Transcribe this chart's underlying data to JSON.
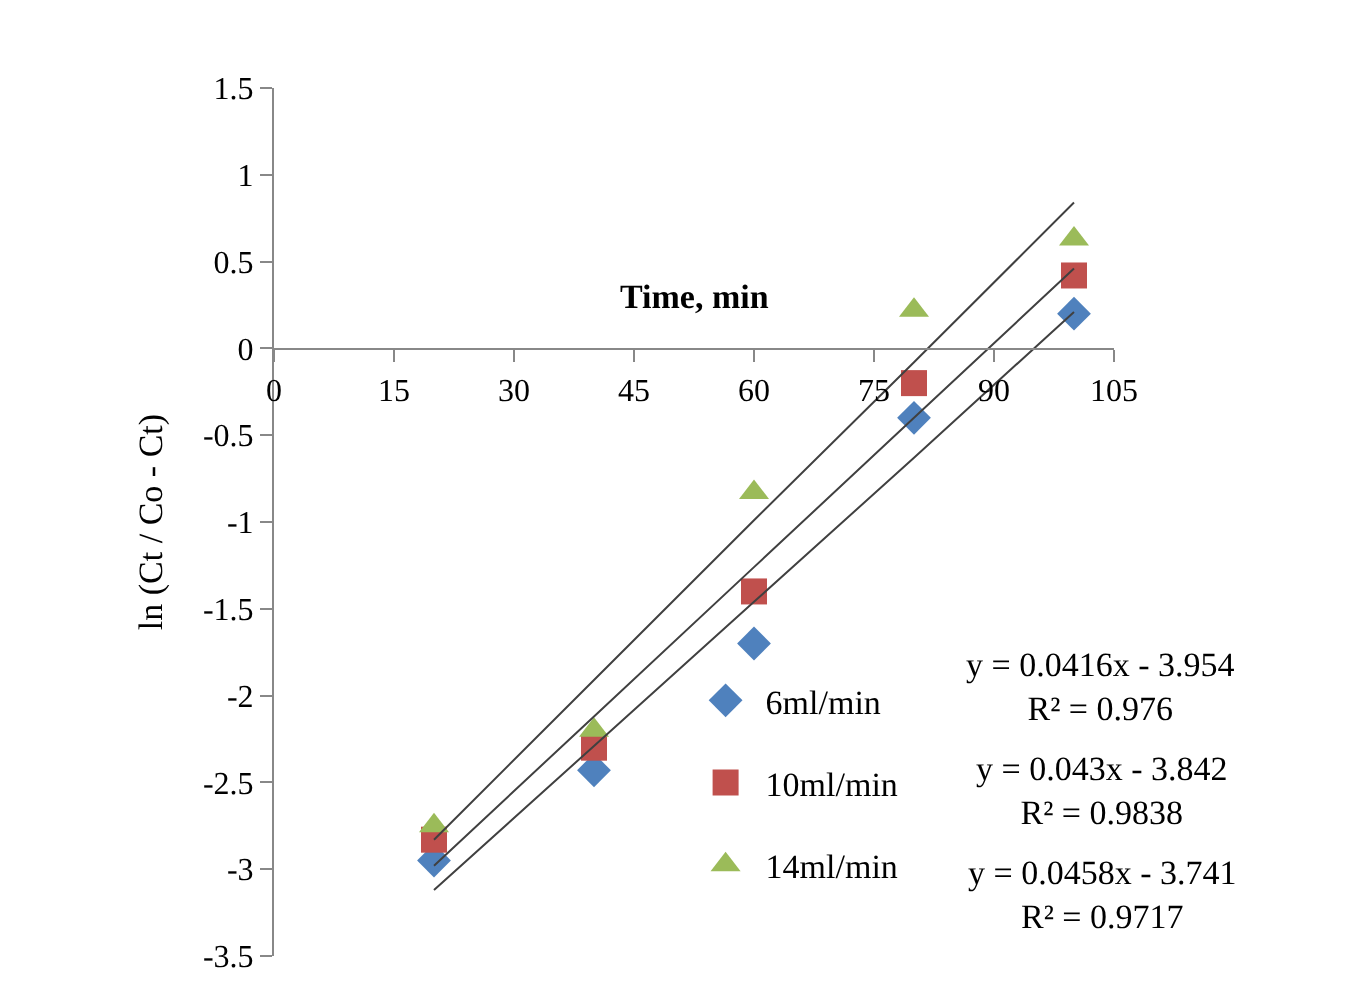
{
  "chart_data": {
    "type": "scatter",
    "xlabel": "Time, min",
    "ylabel": "ln (Ct / Co - Ct)",
    "x": [
      20,
      40,
      60,
      80,
      100
    ],
    "series": [
      {
        "name": "6ml/min",
        "color": "#4f81bd",
        "marker": "diamond",
        "values": [
          -2.95,
          -2.43,
          -1.7,
          -0.4,
          0.2
        ]
      },
      {
        "name": "10ml/min",
        "color": "#c0504d",
        "marker": "square",
        "values": [
          -2.83,
          -2.3,
          -1.4,
          -0.2,
          0.42
        ]
      },
      {
        "name": "14ml/min",
        "color": "#9bbb59",
        "marker": "triangle",
        "values": [
          -2.75,
          -2.2,
          -0.83,
          0.22,
          0.63
        ]
      },
      {
        "type": "line",
        "color": "#404040",
        "marker": "none",
        "values": [
          -3.12,
          -2.29,
          -1.46,
          -0.63,
          0.21
        ]
      },
      {
        "type": "line",
        "color": "#404040",
        "marker": "none",
        "values": [
          -2.98,
          -2.12,
          -1.26,
          -0.4,
          0.46
        ]
      },
      {
        "type": "line",
        "color": "#404040",
        "marker": "none",
        "values": [
          -2.83,
          -1.91,
          -0.99,
          -0.08,
          0.84
        ]
      }
    ],
    "annotations": [
      "y = 0.0416x - 3.954\nR² = 0.976",
      "y = 0.043x - 3.842\nR² = 0.9838",
      "y = 0.0458x - 3.741\nR² = 0.9717"
    ],
    "xlim": [
      0,
      105
    ],
    "xticks": [
      0,
      15,
      30,
      45,
      60,
      75,
      90,
      105
    ],
    "ylim": [
      -3.5,
      1.5
    ],
    "yticks": [
      -3.5,
      -3,
      -2.5,
      -2,
      -1.5,
      -1,
      -0.5,
      0,
      0.5,
      1,
      1.5
    ],
    "legend": "bottom right"
  }
}
